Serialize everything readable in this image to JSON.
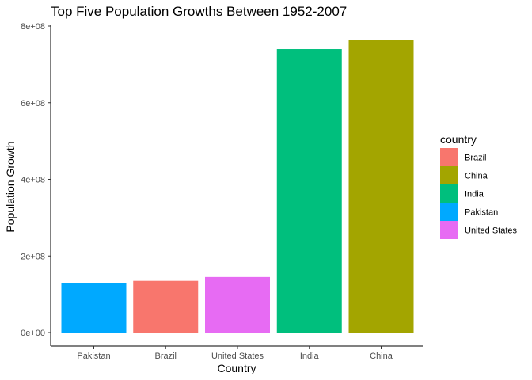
{
  "chart_data": {
    "type": "bar",
    "title": "Top Five Population Growths Between 1952-2007",
    "xlabel": "Country",
    "ylabel": "Population Growth",
    "categories": [
      "Pakistan",
      "Brazil",
      "United States",
      "India",
      "China"
    ],
    "values": [
      130000000,
      135000000,
      145000000,
      740000000,
      763000000
    ],
    "bar_colors": [
      "#00A9FF",
      "#F8766D",
      "#E76BF3",
      "#00BF7D",
      "#A3A500"
    ],
    "ylim": [
      0,
      800000000
    ],
    "y_ticks": [
      0,
      200000000,
      400000000,
      600000000,
      800000000
    ],
    "y_tick_labels": [
      "0e+00",
      "2e+08",
      "4e+08",
      "6e+08",
      "8e+08"
    ],
    "grid": false,
    "legend": {
      "title": "country",
      "placement": "right",
      "entries": [
        {
          "label": "Brazil",
          "color": "#F8766D"
        },
        {
          "label": "China",
          "color": "#A3A500"
        },
        {
          "label": "India",
          "color": "#00BF7D"
        },
        {
          "label": "Pakistan",
          "color": "#00A9FF"
        },
        {
          "label": "United States",
          "color": "#E76BF3"
        }
      ]
    }
  }
}
